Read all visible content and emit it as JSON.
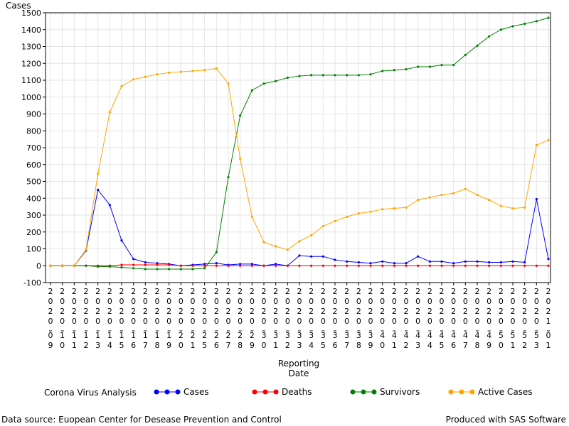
{
  "chart_data": {
    "type": "line",
    "title": "",
    "ylabel": "Cases",
    "xlabel": "Reporting Date",
    "ylim": [
      -100,
      1500
    ],
    "yticks": [
      -100,
      0,
      100,
      200,
      300,
      400,
      500,
      600,
      700,
      800,
      900,
      1000,
      1100,
      1200,
      1300,
      1400,
      1500
    ],
    "grid": true,
    "legend_title": "Corona Virus Analysis",
    "legend_position": "bottom",
    "x": [
      "20200109",
      "20200110",
      "20200111",
      "20200112",
      "20200113",
      "20200114",
      "20200115",
      "20200116",
      "20200117",
      "20200118",
      "20200119",
      "20200120",
      "20200121",
      "20200125",
      "20200126",
      "20200127",
      "20200128",
      "20200129",
      "20200130",
      "20200131",
      "20200132",
      "20200133",
      "20200134",
      "20200135",
      "20200136",
      "20200137",
      "20200138",
      "20200139",
      "20200140",
      "20200141",
      "20200142",
      "20200143",
      "20200144",
      "20200145",
      "20200146",
      "20200147",
      "20200148",
      "20200149",
      "20200150",
      "20200151",
      "20200152",
      "20200153",
      "20210101"
    ],
    "series": [
      {
        "name": "Cases",
        "color": "#0000ff",
        "values": [
          0,
          0,
          0,
          90,
          450,
          360,
          150,
          40,
          20,
          15,
          10,
          0,
          5,
          10,
          15,
          5,
          10,
          10,
          0,
          10,
          0,
          60,
          55,
          55,
          35,
          25,
          20,
          15,
          25,
          15,
          15,
          55,
          25,
          25,
          15,
          25,
          25,
          20,
          20,
          25,
          20,
          395,
          40
        ]
      },
      {
        "name": "Deaths",
        "color": "#ff0000",
        "values": [
          0,
          0,
          0,
          0,
          0,
          0,
          5,
          5,
          5,
          5,
          5,
          0,
          0,
          0,
          0,
          0,
          0,
          0,
          0,
          0,
          0,
          0,
          0,
          0,
          0,
          0,
          0,
          0,
          0,
          0,
          0,
          0,
          0,
          0,
          0,
          0,
          0,
          0,
          0,
          0,
          0,
          0,
          0
        ]
      },
      {
        "name": "Survivors",
        "color": "#008000",
        "values": [
          0,
          0,
          0,
          0,
          -5,
          -5,
          -10,
          -15,
          -20,
          -20,
          -20,
          -20,
          -20,
          -15,
          80,
          525,
          890,
          1040,
          1080,
          1095,
          1115,
          1125,
          1130,
          1130,
          1130,
          1130,
          1130,
          1135,
          1155,
          1160,
          1165,
          1180,
          1180,
          1190,
          1190,
          1250,
          1305,
          1360,
          1400,
          1420,
          1435,
          1450,
          1470
        ]
      },
      {
        "name": "Active Cases",
        "color": "#ffa500",
        "values": [
          0,
          0,
          0,
          95,
          545,
          910,
          1065,
          1105,
          1120,
          1135,
          1145,
          1150,
          1155,
          1160,
          1170,
          1080,
          635,
          290,
          140,
          115,
          95,
          145,
          180,
          235,
          265,
          290,
          310,
          320,
          335,
          340,
          345,
          390,
          405,
          420,
          430,
          455,
          420,
          390,
          355,
          340,
          345,
          715,
          745
        ]
      }
    ]
  },
  "footer": {
    "left": "Data source: Euopean Center for Desease Prevention and Control",
    "right": "Produced with SAS Software"
  }
}
